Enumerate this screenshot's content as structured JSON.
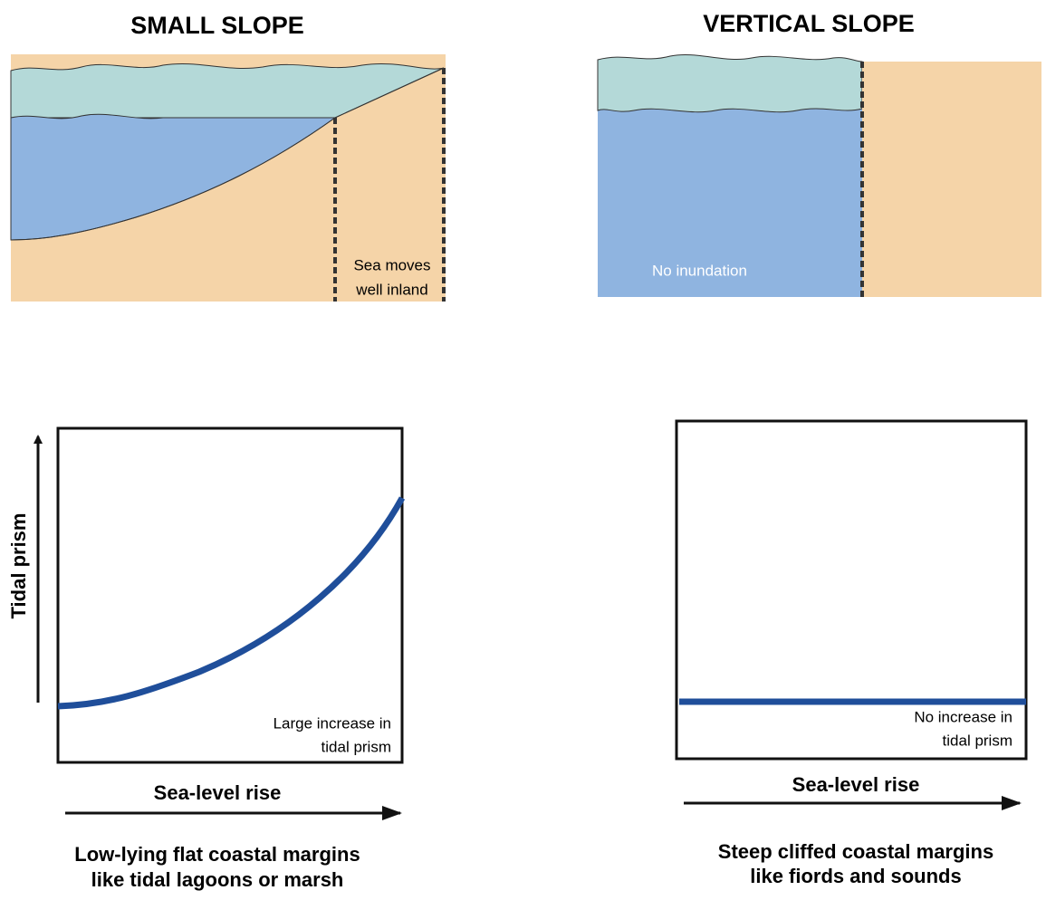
{
  "panels": [
    {
      "title": "SMALL SLOPE",
      "diagram_note": [
        "Sea moves",
        "well inland"
      ],
      "graph": {
        "y_label": "Tidal prism",
        "note": [
          "Large increase in",
          "tidal prism"
        ],
        "x_label": "Sea-level rise"
      },
      "caption": [
        "Low-lying flat coastal margins",
        "like tidal lagoons or marsh"
      ]
    },
    {
      "title": "VERTICAL SLOPE",
      "diagram_note": [
        "No inundation"
      ],
      "graph": {
        "note": [
          "No increase in",
          "tidal prism"
        ],
        "x_label": "Sea-level rise"
      },
      "caption": [
        "Steep cliffed coastal margins",
        "like fiords and sounds"
      ]
    }
  ]
}
